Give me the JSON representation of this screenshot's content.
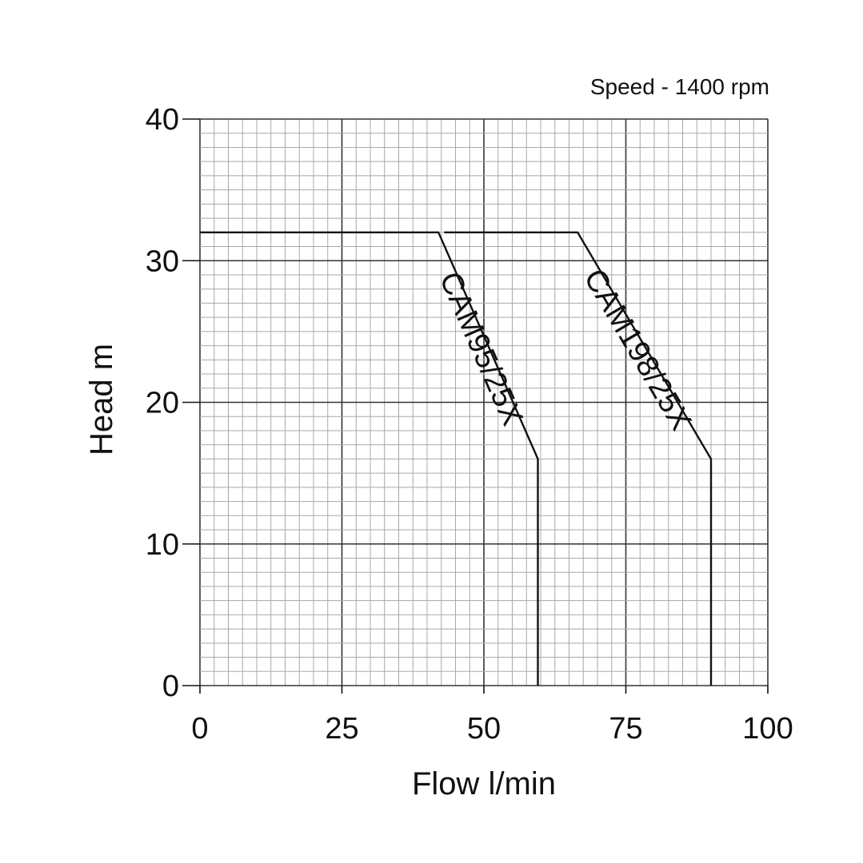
{
  "chart_data": {
    "type": "line",
    "title": "",
    "annotation": "Speed - 1400 rpm",
    "xlabel": "Flow l/min",
    "ylabel": "Head m",
    "xlim": [
      0,
      100
    ],
    "ylim": [
      0,
      40
    ],
    "x_ticks": [
      "0",
      "25",
      "50",
      "75",
      "100"
    ],
    "y_ticks": [
      "0",
      "10",
      "20",
      "30",
      "40"
    ],
    "grid": true,
    "series": [
      {
        "name": "CAM95/25X",
        "x": [
          0,
          42,
          59.5,
          59.5
        ],
        "y": [
          32,
          32,
          16,
          0
        ]
      },
      {
        "name": "CAM198/25X",
        "x": [
          43,
          66.5,
          90,
          90
        ],
        "y": [
          32,
          32,
          16,
          0
        ]
      }
    ]
  }
}
